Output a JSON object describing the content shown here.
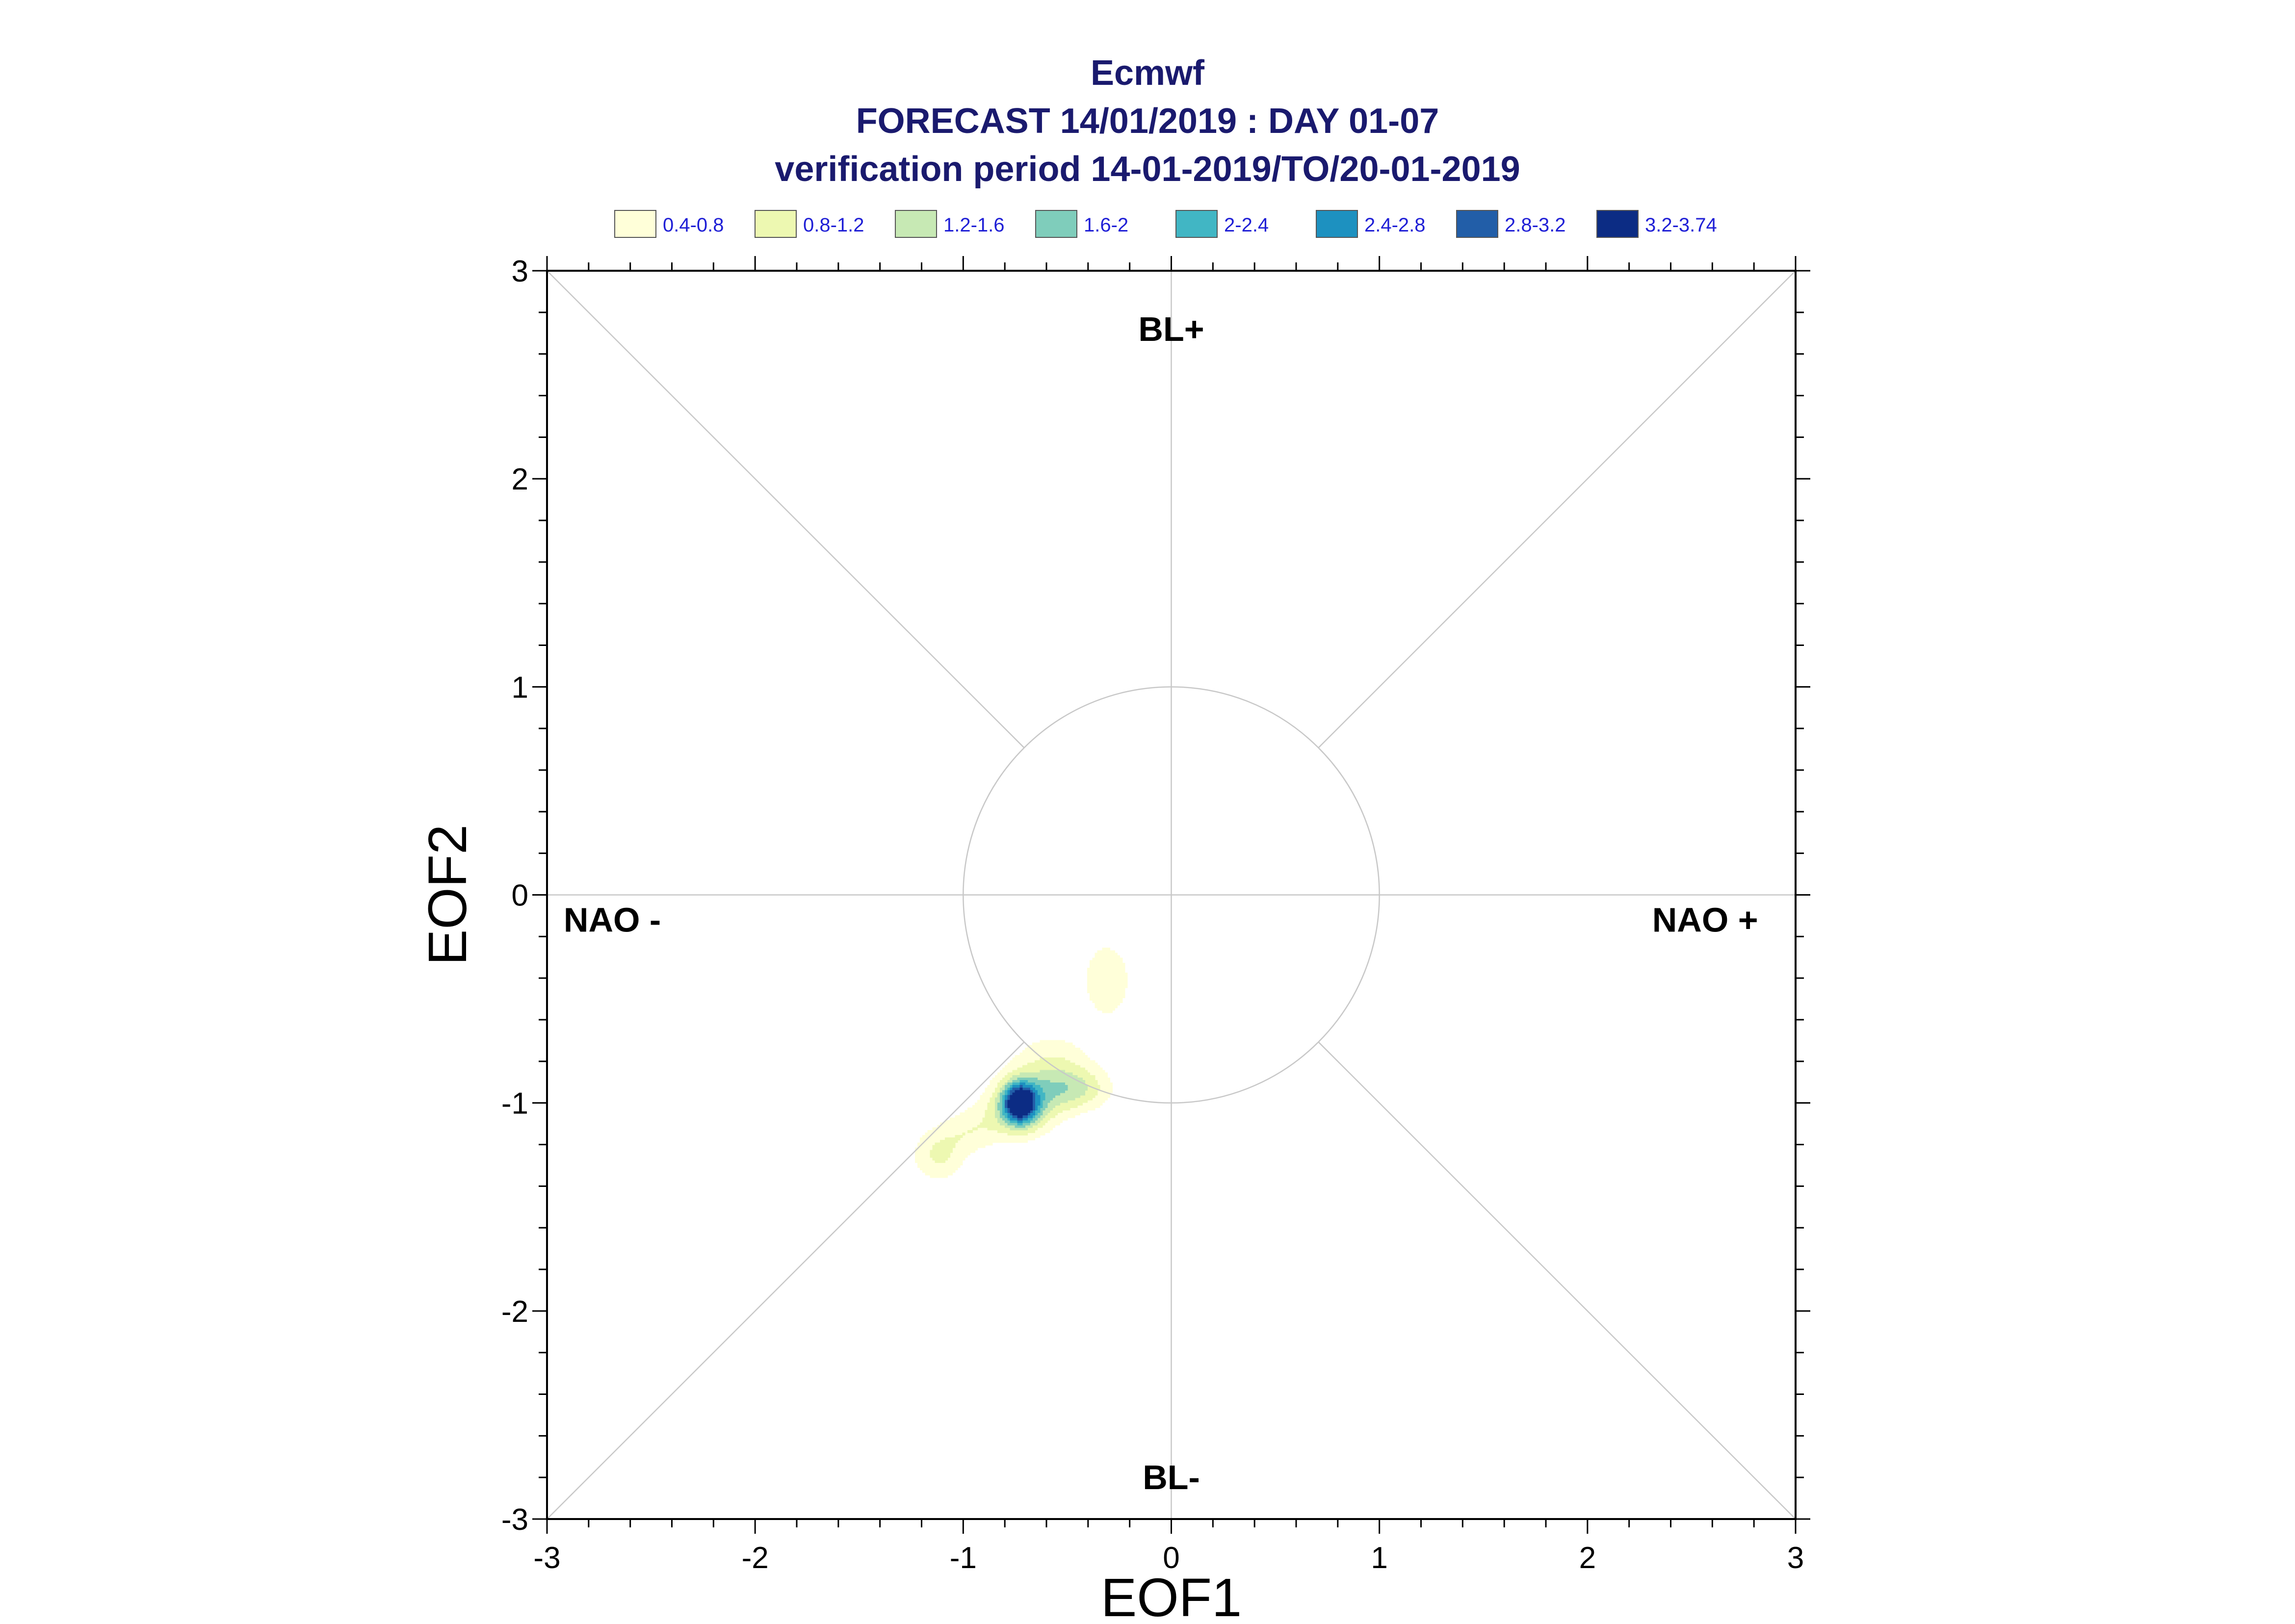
{
  "chart_data": {
    "type": "heatmap",
    "title": [
      "Ecmwf",
      "FORECAST 14/01/2019 : DAY 01-07",
      "verification period 14-01-2019/TO/20-01-2019"
    ],
    "xlabel": "EOF1",
    "ylabel": "EOF2",
    "xlim": [
      -3,
      3
    ],
    "ylim": [
      -3,
      3
    ],
    "x_ticks": [
      "-3",
      "-2",
      "-1",
      "0",
      "1",
      "2",
      "3"
    ],
    "y_ticks": [
      "-3",
      "-2",
      "-1",
      "0",
      "1",
      "2",
      "3"
    ],
    "grid": false,
    "reference_circle_radius": 1,
    "annotations": [
      "BL+",
      "BL-",
      "NAO -",
      "NAO +"
    ],
    "legend_placement": "top",
    "legend": [
      {
        "label": "0.4-0.8",
        "color": "#ffffd9"
      },
      {
        "label": "0.8-1.2",
        "color": "#edf8b1"
      },
      {
        "label": "1.2-1.6",
        "color": "#c7e9b4"
      },
      {
        "label": "1.6-2",
        "color": "#7fcdbb"
      },
      {
        "label": "2-2.4",
        "color": "#41b6c4"
      },
      {
        "label": "2.4-2.8",
        "color": "#1d91c0"
      },
      {
        "label": "2.8-3.2",
        "color": "#225ea8"
      },
      {
        "label": "3.2-3.74",
        "color": "#0c2c84"
      }
    ],
    "density_peak": {
      "x": -0.73,
      "y": -1.0,
      "value": 3.74
    }
  }
}
